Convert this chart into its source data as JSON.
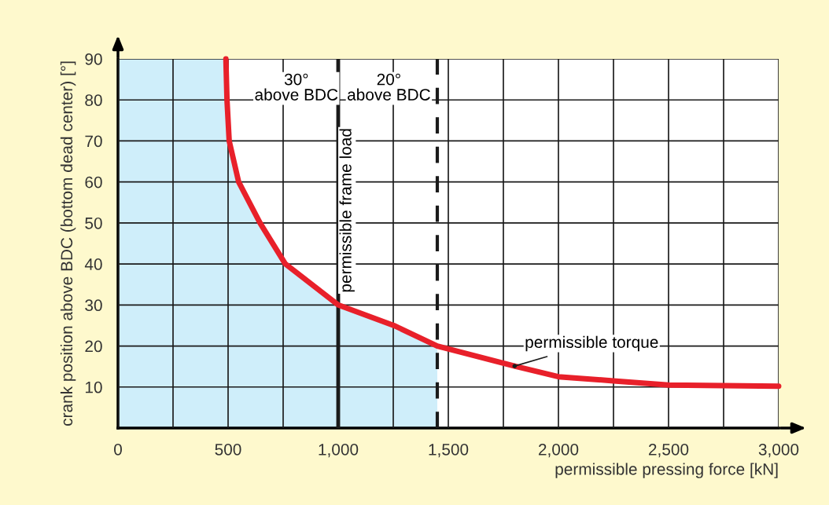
{
  "chart_data": {
    "type": "line",
    "xlabel": "permissible pressing force [kN]",
    "ylabel": "crank position above BDC (bottom dead center) [°]",
    "xlim": [
      0,
      3000
    ],
    "ylim": [
      0,
      90
    ],
    "xticks": [
      0,
      {
        "value": 250,
        "label": null
      },
      500,
      {
        "value": 750,
        "label": null
      },
      {
        "value": 1000,
        "label": "1,000"
      },
      {
        "value": 1250,
        "label": null
      },
      {
        "value": 1500,
        "label": "1,500"
      },
      {
        "value": 1750,
        "label": null
      },
      {
        "value": 2000,
        "label": "2,000"
      },
      {
        "value": 2250,
        "label": null
      },
      {
        "value": 2500,
        "label": "2,500"
      },
      {
        "value": 2750,
        "label": null
      },
      {
        "value": 3000,
        "label": "3,000"
      }
    ],
    "yticks": [
      10,
      20,
      30,
      40,
      50,
      60,
      70,
      80,
      90
    ],
    "grid": true,
    "series": [
      {
        "type": "area",
        "color": "#cfeefa",
        "x": [
          0,
          490,
          495,
          505,
          548,
          645,
          760,
          1000,
          1253,
          1450
        ],
        "values": [
          90,
          90,
          80,
          70,
          60,
          50,
          40,
          30,
          25,
          20
        ]
      },
      {
        "color": "#e8202a",
        "line_style": "solid",
        "x": [
          490,
          495,
          505,
          548,
          645,
          760,
          1000,
          1253,
          1450,
          1801,
          2000,
          2250,
          2500,
          3000
        ],
        "values": [
          90,
          80,
          70,
          60,
          50,
          40,
          30,
          25,
          20,
          15.1,
          12.5,
          11.5,
          10.5,
          10.2
        ]
      }
    ],
    "ref_lines": [
      {
        "axis": "x",
        "value": 1000,
        "label": "permissible frame load",
        "color": "#1a1a1a",
        "line_style": "solid"
      },
      {
        "axis": "x",
        "value": 1450,
        "label": null,
        "color": "#1a1a1a",
        "line_style": "dashed"
      }
    ],
    "annotations": [
      "30°\nabove BDC",
      "20°\nabove BDC",
      {
        "text": "permissible torque",
        "x": 1801,
        "y": 15.1
      }
    ]
  }
}
